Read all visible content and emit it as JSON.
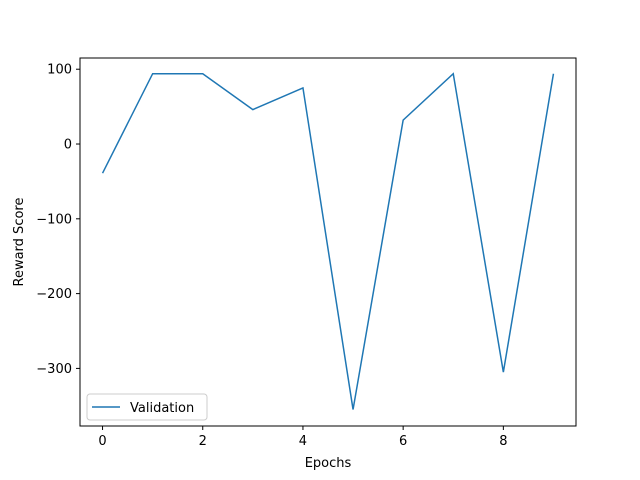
{
  "chart_data": {
    "type": "line",
    "title": "",
    "xlabel": "Epochs",
    "ylabel": "Reward Score",
    "xlim": [
      -0.45,
      9.45
    ],
    "ylim": [
      -377,
      115
    ],
    "x_ticks": [
      0,
      2,
      4,
      6,
      8
    ],
    "y_ticks": [
      100,
      0,
      -100,
      -200,
      -300
    ],
    "x_tick_labels": [
      "0",
      "2",
      "4",
      "6",
      "8"
    ],
    "y_tick_labels": [
      "100",
      "0",
      "−100",
      "−200",
      "−300"
    ],
    "grid": false,
    "legend": {
      "placement": "lower-left"
    },
    "series": [
      {
        "name": "Validation",
        "color": "#1f77b4",
        "x": [
          0,
          1,
          2,
          3,
          4,
          5,
          6,
          7,
          8,
          9
        ],
        "y": [
          -39,
          94,
          94,
          46,
          75,
          -355,
          32,
          94,
          -305,
          94
        ]
      }
    ]
  }
}
